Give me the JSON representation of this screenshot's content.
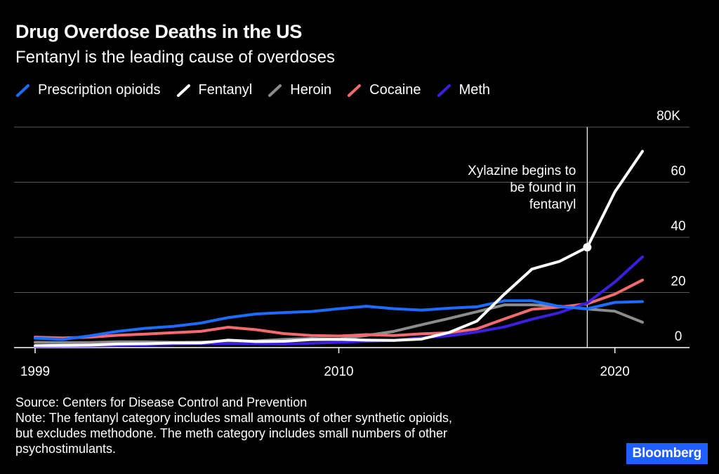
{
  "chart_data": {
    "type": "line",
    "title": "Drug Overdose Deaths in the US",
    "subtitle": "Fentanyl is the leading cause of overdoses",
    "x": [
      1999,
      2000,
      2001,
      2002,
      2003,
      2004,
      2005,
      2006,
      2007,
      2008,
      2009,
      2010,
      2011,
      2012,
      2013,
      2014,
      2015,
      2016,
      2017,
      2018,
      2019,
      2020,
      2021
    ],
    "series": [
      {
        "name": "Prescription opioids",
        "color": "#1a6dff",
        "values": [
          3.4,
          3.0,
          4.3,
          5.9,
          7.0,
          7.7,
          8.9,
          10.9,
          12.2,
          12.7,
          13.1,
          14.1,
          15.0,
          14.1,
          13.6,
          14.3,
          14.8,
          17.0,
          17.0,
          14.9,
          14.1,
          16.4,
          16.7
        ]
      },
      {
        "name": "Fentanyl",
        "color": "#ffffff",
        "values": [
          0.7,
          0.8,
          0.9,
          1.3,
          1.4,
          1.7,
          1.7,
          2.7,
          2.2,
          2.3,
          2.9,
          3.0,
          2.7,
          2.6,
          3.1,
          5.5,
          9.6,
          19.4,
          28.5,
          31.3,
          36.4,
          56.5,
          71.2
        ]
      },
      {
        "name": "Heroin",
        "color": "#8c8c8c",
        "values": [
          1.9,
          1.8,
          1.8,
          2.1,
          2.1,
          1.9,
          2.0,
          2.1,
          2.4,
          3.0,
          3.3,
          3.0,
          4.4,
          5.9,
          8.3,
          10.6,
          13.0,
          15.5,
          15.5,
          15.0,
          14.0,
          13.2,
          9.2
        ]
      },
      {
        "name": "Cocaine",
        "color": "#f46a6e",
        "values": [
          3.8,
          3.5,
          3.8,
          4.5,
          4.9,
          5.4,
          5.9,
          7.4,
          6.5,
          5.1,
          4.4,
          4.2,
          4.7,
          4.4,
          5.0,
          5.4,
          6.8,
          10.4,
          13.9,
          14.7,
          15.9,
          19.4,
          24.5
        ]
      },
      {
        "name": "Meth",
        "color": "#3a1fe0",
        "values": [
          0.5,
          0.6,
          0.6,
          0.8,
          1.0,
          1.2,
          1.5,
          1.5,
          1.4,
          1.3,
          1.6,
          1.9,
          2.3,
          2.6,
          3.6,
          4.3,
          5.7,
          7.5,
          10.3,
          12.7,
          16.2,
          23.8,
          32.9
        ]
      }
    ],
    "xlim": [
      1999,
      2022
    ],
    "ylim": [
      0,
      80
    ],
    "x_ticks": [
      {
        "value": 1999,
        "label": "1999"
      },
      {
        "value": 2010,
        "label": "2010"
      },
      {
        "value": 2020,
        "label": "2020"
      }
    ],
    "y_ticks": [
      {
        "value": 0,
        "label": "0"
      },
      {
        "value": 20,
        "label": "20"
      },
      {
        "value": 40,
        "label": "40"
      },
      {
        "value": 60,
        "label": "60"
      },
      {
        "value": 80,
        "label": "80K"
      }
    ],
    "annotation": {
      "x": 2019,
      "y": 36.4,
      "lines": [
        "Xylazine begins to",
        "be found in",
        "fentanyl"
      ]
    },
    "legend_position": "top-left",
    "grid": true
  },
  "footer": {
    "source": "Source: Centers for Disease Control and Prevention",
    "note_lines": [
      "Note: The fentanyl category includes small amounts of other synthetic opioids,",
      "but excludes methodone. The meth category includes small numbers of other",
      "psychostimulants."
    ]
  },
  "brand": "Bloomberg",
  "colors": {
    "background": "#000000",
    "grid": "#5a5a5a",
    "axis": "#ffffff",
    "brand_bg": "#1f5fff"
  }
}
